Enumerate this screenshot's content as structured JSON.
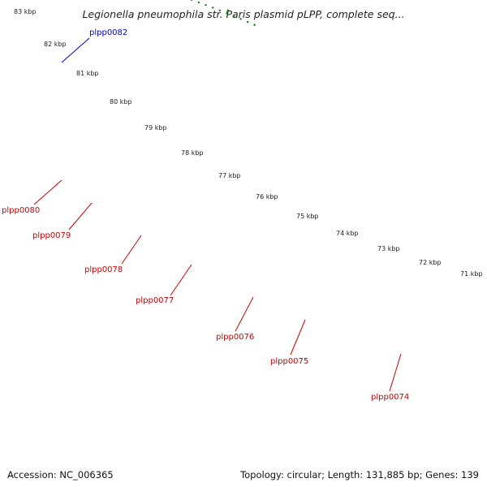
{
  "title": "Legionella pneumophila str. Paris plasmid pLPP, complete seq...",
  "ticks": [
    "83 kbp",
    "82 kbp",
    "81 kbp",
    "80 kbp",
    "79 kbp",
    "78 kbp",
    "77 kbp",
    "76 kbp",
    "75 kbp",
    "74 kbp",
    "73 kbp",
    "72 kbp",
    "71 kbp"
  ],
  "gene_labels": [
    {
      "text": "plpp0082",
      "color": "#0000cc"
    },
    {
      "text": "plpp0080",
      "color": "#cc0000"
    },
    {
      "text": "plpp0079",
      "color": "#cc0000"
    },
    {
      "text": "plpp0078",
      "color": "#cc0000"
    },
    {
      "text": "plpp0077",
      "color": "#cc0000"
    },
    {
      "text": "plpp0076",
      "color": "#cc0000"
    },
    {
      "text": "plpp0075",
      "color": "#cc0000"
    },
    {
      "text": "plpp0074",
      "color": "#cc0000"
    }
  ],
  "colors": {
    "cds": "#ff0000",
    "backbone": "#888888",
    "ticks": "#1a7a1a",
    "blue_cds": "#0000ff",
    "navy": "#000080",
    "gray": "#bbbbbb",
    "cyan": "#00c8d8",
    "aquamarine": "#10e8a0",
    "olive": "#6b8e23",
    "orange": "#ff8c00"
  },
  "footer": {
    "accession": "Accession: NC_006365",
    "summary": "Topology: circular; Length: 131,885 bp; Genes: 139"
  }
}
